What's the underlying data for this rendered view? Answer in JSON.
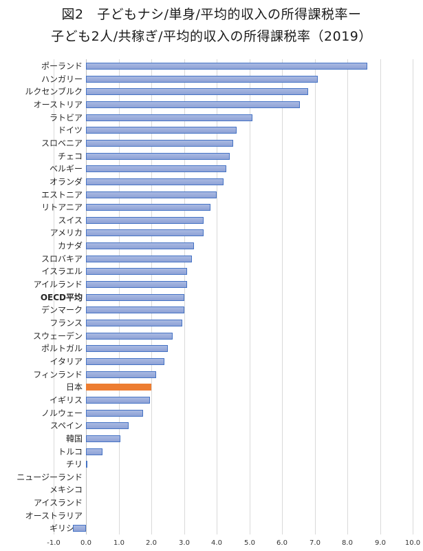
{
  "chart_data": {
    "type": "bar",
    "orientation": "horizontal",
    "title": "図2　子どもナシ/単身/平均的収入の所得課税率ー子ども2人/共稼ぎ/平均的収入の所得課税率（2019）",
    "title_lines": [
      "図2　子どもナシ/単身/平均的収入の所得課税率ー",
      "子ども2人/共稼ぎ/平均的収入の所得課税率（2019）"
    ],
    "xlabel": "",
    "ylabel": "",
    "xlim": [
      -1.0,
      10.0
    ],
    "x_ticks": [
      "-1.0",
      "0.0",
      "1.0",
      "2.0",
      "3.0",
      "4.0",
      "5.0",
      "6.0",
      "7.0",
      "8.0",
      "9.0",
      "10.0"
    ],
    "grid": true,
    "legend": null,
    "colors": {
      "default": "#8ea2d6",
      "border": "#4472c4",
      "highlight": "#ed7d31"
    },
    "categories": [
      "ポーランド",
      "ハンガリー",
      "ルクセンブルク",
      "オーストリア",
      "ラトビア",
      "ドイツ",
      "スロベニア",
      "チェコ",
      "ベルギー",
      "オランダ",
      "エストニア",
      "リトアニア",
      "スイス",
      "アメリカ",
      "カナダ",
      "スロバキア",
      "イスラエル",
      "アイルランド",
      "OECD平均",
      "デンマーク",
      "フランス",
      "スウェーデン",
      "ポルトガル",
      "イタリア",
      "フィンランド",
      "日本",
      "イギリス",
      "ノルウェー",
      "スペイン",
      "韓国",
      "トルコ",
      "チリ",
      "ニュージーランド",
      "メキシコ",
      "アイスランド",
      "オーストラリア",
      "ギリシャ"
    ],
    "values": [
      8.6,
      7.1,
      6.8,
      6.55,
      5.1,
      4.6,
      4.5,
      4.4,
      4.3,
      4.2,
      4.0,
      3.8,
      3.6,
      3.6,
      3.3,
      3.25,
      3.1,
      3.1,
      3.0,
      3.0,
      2.95,
      2.65,
      2.5,
      2.4,
      2.15,
      2.0,
      1.95,
      1.75,
      1.3,
      1.05,
      0.5,
      0.05,
      0.0,
      0.0,
      0.0,
      0.0,
      -0.4
    ],
    "highlight_category": "日本"
  }
}
